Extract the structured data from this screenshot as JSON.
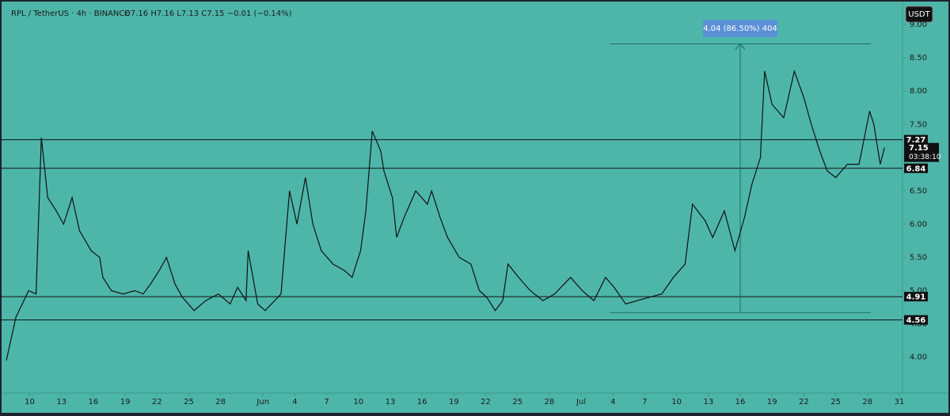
{
  "header": {
    "symbol": "RPL / TetherUS · 4h · BINANCE",
    "ohlc": "O7.16 H7.16 L7.13 C7.15 −0.01 (−0.14%)",
    "currency": "USDT"
  },
  "chart_data": {
    "type": "line",
    "color": "#111111",
    "x": [
      -2.2,
      -1.3,
      -0.1,
      0.6,
      1.1,
      1.7,
      2.5,
      3.2,
      4.0,
      4.7,
      5.8,
      6.6,
      6.9,
      7.7,
      8.8,
      9.9,
      10.7,
      11.4,
      12.2,
      12.9,
      13.7,
      14.4,
      15.5,
      16.6,
      17.8,
      18.9,
      19.6,
      20.4,
      20.6,
      21.5,
      22.2,
      23.4,
      23.7,
      24.5,
      25.2,
      26.0,
      26.7,
      27.5,
      28.6,
      29.7,
      30.4,
      31.2,
      31.7,
      32.3,
      33.1,
      33.4,
      34.2,
      34.6,
      35.3,
      36.4,
      37.5,
      37.9,
      38.7,
      39.4,
      40.5,
      41.6,
      42.4,
      43.1,
      43.9,
      44.6,
      45.1,
      46.1,
      47.2,
      48.4,
      49.5,
      51.0,
      52.1,
      53.2,
      54.3,
      55.1,
      56.2,
      57.3,
      58.4,
      59.6,
      60.7,
      61.8,
      62.5,
      63.7,
      64.4,
      65.5,
      66.5,
      67.4,
      68.1,
      68.9,
      69.3,
      70.0,
      71.1,
      72.1,
      73.0,
      73.7,
      74.5,
      75.2,
      76.0,
      77.1,
      78.2,
      79.2,
      79.6,
      80.2,
      80.6
    ],
    "values": [
      3.95,
      4.6,
      5.0,
      4.95,
      7.3,
      6.4,
      6.2,
      6.0,
      6.4,
      5.9,
      5.6,
      5.5,
      5.2,
      5.0,
      4.95,
      5.0,
      4.95,
      5.1,
      5.3,
      5.5,
      5.1,
      4.9,
      4.7,
      4.85,
      4.95,
      4.8,
      5.05,
      4.85,
      5.6,
      4.8,
      4.7,
      4.9,
      4.95,
      6.5,
      6.0,
      6.7,
      6.0,
      5.6,
      5.4,
      5.3,
      5.2,
      5.6,
      6.2,
      7.4,
      7.1,
      6.8,
      6.4,
      5.8,
      6.1,
      6.5,
      6.3,
      6.5,
      6.1,
      5.8,
      5.5,
      5.4,
      5.0,
      4.9,
      4.7,
      4.85,
      5.4,
      5.2,
      5.0,
      4.85,
      4.95,
      5.2,
      5.0,
      4.85,
      5.2,
      5.05,
      4.8,
      4.85,
      4.9,
      4.95,
      5.2,
      5.4,
      6.3,
      6.05,
      5.8,
      6.2,
      5.6,
      6.1,
      6.6,
      7.0,
      8.3,
      7.8,
      7.6,
      8.3,
      7.9,
      7.5,
      7.1,
      6.8,
      6.7,
      6.9,
      6.9,
      7.7,
      7.5,
      6.9,
      7.15
    ],
    "xlim": [
      -2.8,
      82.3
    ],
    "xticks": [
      {
        "value": 0,
        "label": "10"
      },
      {
        "value": 3,
        "label": "13"
      },
      {
        "value": 6,
        "label": "16"
      },
      {
        "value": 9,
        "label": "19"
      },
      {
        "value": 12,
        "label": "22"
      },
      {
        "value": 15,
        "label": "25"
      },
      {
        "value": 18,
        "label": "28"
      },
      {
        "value": 22,
        "label": "Jun"
      },
      {
        "value": 25,
        "label": "4"
      },
      {
        "value": 28,
        "label": "7"
      },
      {
        "value": 31,
        "label": "10"
      },
      {
        "value": 34,
        "label": "13"
      },
      {
        "value": 37,
        "label": "16"
      },
      {
        "value": 40,
        "label": "19"
      },
      {
        "value": 43,
        "label": "22"
      },
      {
        "value": 46,
        "label": "25"
      },
      {
        "value": 49,
        "label": "28"
      },
      {
        "value": 52,
        "label": "Jul"
      },
      {
        "value": 55,
        "label": "4"
      },
      {
        "value": 58,
        "label": "7"
      },
      {
        "value": 61,
        "label": "10"
      },
      {
        "value": 64,
        "label": "13"
      },
      {
        "value": 67,
        "label": "16"
      },
      {
        "value": 70,
        "label": "19"
      },
      {
        "value": 73,
        "label": "22"
      },
      {
        "value": 76,
        "label": "25"
      },
      {
        "value": 79,
        "label": "28"
      },
      {
        "value": 82,
        "label": "31"
      }
    ],
    "ylim": [
      3.46,
      9.37
    ],
    "yticks": [
      {
        "value": 4,
        "label": "4.00"
      },
      {
        "value": 4.5,
        "label": "4.50"
      },
      {
        "value": 5,
        "label": "5.00"
      },
      {
        "value": 5.5,
        "label": "5.50"
      },
      {
        "value": 6,
        "label": "6.00"
      },
      {
        "value": 6.5,
        "label": "6.50"
      },
      {
        "value": 7,
        "label": "7.00"
      },
      {
        "value": 7.5,
        "label": "7.50"
      },
      {
        "value": 8,
        "label": "8.00"
      },
      {
        "value": 8.5,
        "label": "8.50"
      },
      {
        "value": 9,
        "label": "9.00"
      }
    ],
    "horizontal_lines": [
      7.27,
      6.84,
      4.91,
      4.56
    ],
    "last_price": 7.15,
    "countdown": "03:38:10",
    "measure": {
      "x_start": 54.7,
      "x_end": 79.3,
      "arrow_x": 67.0,
      "low": 4.67,
      "high": 8.71,
      "label": "4.04 (86.50%) 404"
    }
  }
}
